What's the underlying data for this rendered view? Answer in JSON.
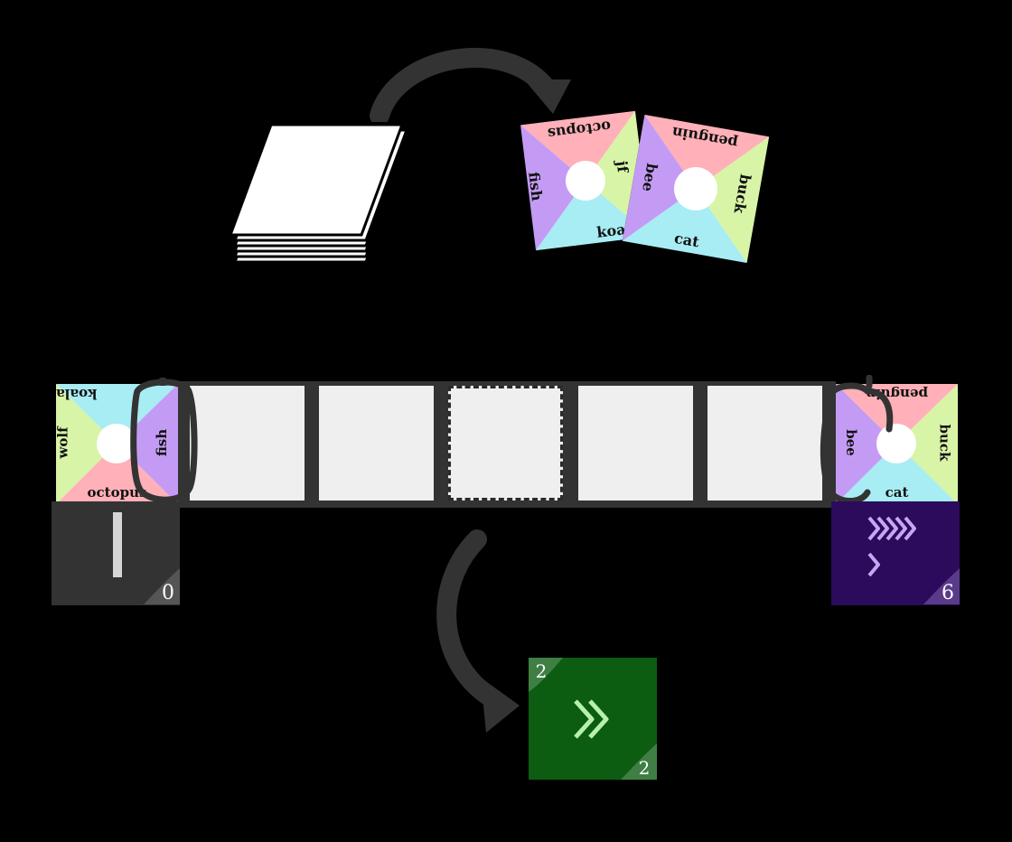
{
  "colors": {
    "pink": "#ffb0b8",
    "green": "#d8f4a6",
    "cyan": "#a8ecf4",
    "purple": "#c49bf4",
    "dark_panel": "#333333",
    "purple_panel": "#2c0a5c",
    "green_card": "#0c5c12",
    "slot": "#efefef"
  },
  "deck": {
    "icon": "card-stack"
  },
  "discard_cards": [
    {
      "top": "octopus",
      "left": "fish",
      "right": "jf",
      "bottom": "koala"
    },
    {
      "top": "penguin",
      "left": "bee",
      "right": "buck",
      "bottom": "cat"
    }
  ],
  "left_player": {
    "card": {
      "top": "koala",
      "left": "wolf",
      "right": "fish",
      "bottom": "octopus"
    },
    "score": "0"
  },
  "right_player": {
    "card": {
      "top": "penguin",
      "left": "bee",
      "right": "buck",
      "bottom": "cat"
    },
    "score": "6"
  },
  "move_card": {
    "top_number": "2",
    "bottom_number": "2",
    "icon": "double-chevron-right"
  }
}
